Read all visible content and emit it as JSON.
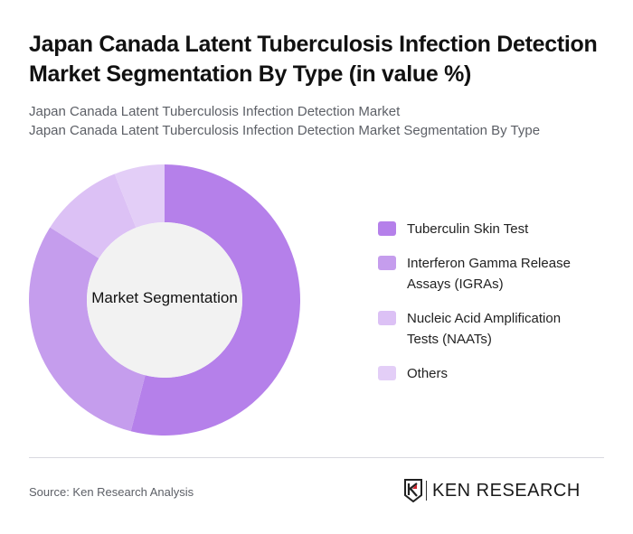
{
  "header": {
    "title": "Japan Canada Latent Tuberculosis Infection Detection Market Segmentation By Type (in value %)",
    "subtitle_line1": "Japan Canada Latent Tuberculosis Infection Detection Market",
    "subtitle_line2": "Japan Canada Latent Tuberculosis Infection Detection Market Segmentation By Type"
  },
  "chart": {
    "center_label": "Market Segmentation"
  },
  "legend": {
    "items": [
      {
        "label": "Tuberculin Skin Test",
        "color": "#b580ea"
      },
      {
        "label": "Interferon Gamma Release Assays (IGRAs)",
        "color": "#c59ded"
      },
      {
        "label": "Nucleic Acid Amplification Tests (NAATs)",
        "color": "#dcc1f5"
      },
      {
        "label": "Others",
        "color": "#e3cef7"
      }
    ]
  },
  "footer": {
    "source": "Source: Ken Research Analysis",
    "logo_text": "KEN RESEARCH"
  },
  "chart_data": {
    "type": "pie",
    "subtype": "donut",
    "title": "Japan Canada Latent Tuberculosis Infection Detection Market Segmentation By Type (in value %)",
    "center_label": "Market Segmentation",
    "categories": [
      "Tuberculin Skin Test",
      "Interferon Gamma Release Assays (IGRAs)",
      "Nucleic Acid Amplification Tests (NAATs)",
      "Others"
    ],
    "values": [
      54,
      30,
      10,
      6
    ],
    "colors": [
      "#b580ea",
      "#c59ded",
      "#dcc1f5",
      "#e3cef7"
    ],
    "start_angle": "12 o'clock, clockwise",
    "legend_position": "right",
    "unit": "%"
  }
}
